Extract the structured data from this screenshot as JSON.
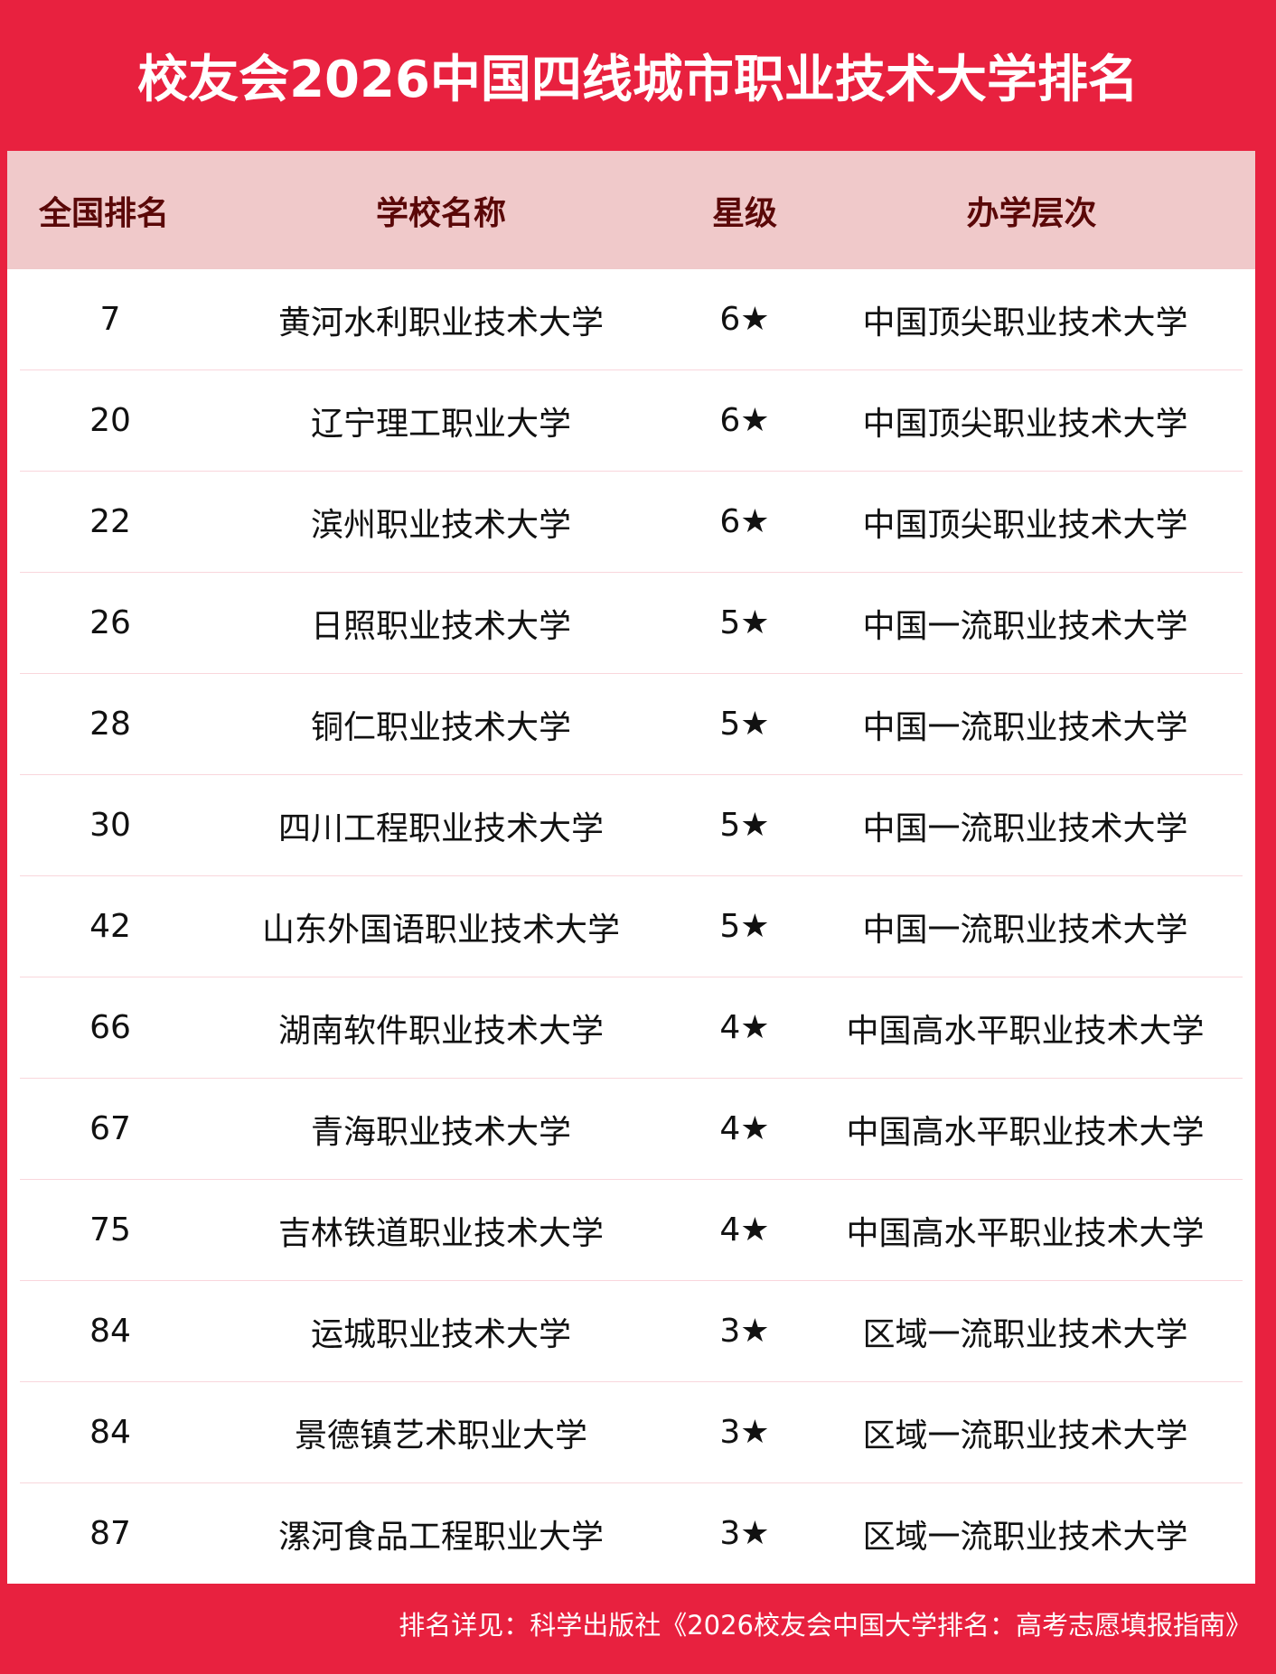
{
  "title": "校友会2026中国四线城市职业技术大学排名",
  "colors": {
    "brand_red": "#e8213f",
    "header_band": "#f0c9ca",
    "header_text": "#5a0808"
  },
  "table": {
    "headers": [
      "全国排名",
      "学校名称",
      "星级",
      "办学层次"
    ],
    "rows": [
      {
        "rank": "7",
        "name": "黄河水利职业技术大学",
        "stars": "6★",
        "level": "中国顶尖职业技术大学"
      },
      {
        "rank": "20",
        "name": "辽宁理工职业大学",
        "stars": "6★",
        "level": "中国顶尖职业技术大学"
      },
      {
        "rank": "22",
        "name": "滨州职业技术大学",
        "stars": "6★",
        "level": "中国顶尖职业技术大学"
      },
      {
        "rank": "26",
        "name": "日照职业技术大学",
        "stars": "5★",
        "level": "中国一流职业技术大学"
      },
      {
        "rank": "28",
        "name": "铜仁职业技术大学",
        "stars": "5★",
        "level": "中国一流职业技术大学"
      },
      {
        "rank": "30",
        "name": "四川工程职业技术大学",
        "stars": "5★",
        "level": "中国一流职业技术大学"
      },
      {
        "rank": "42",
        "name": "山东外国语职业技术大学",
        "stars": "5★",
        "level": "中国一流职业技术大学"
      },
      {
        "rank": "66",
        "name": "湖南软件职业技术大学",
        "stars": "4★",
        "level": "中国高水平职业技术大学"
      },
      {
        "rank": "67",
        "name": "青海职业技术大学",
        "stars": "4★",
        "level": "中国高水平职业技术大学"
      },
      {
        "rank": "75",
        "name": "吉林铁道职业技术大学",
        "stars": "4★",
        "level": "中国高水平职业技术大学"
      },
      {
        "rank": "84",
        "name": "运城职业技术大学",
        "stars": "3★",
        "level": "区域一流职业技术大学"
      },
      {
        "rank": "84",
        "name": "景德镇艺术职业大学",
        "stars": "3★",
        "level": "区域一流职业技术大学"
      },
      {
        "rank": "87",
        "name": "漯河食品工程职业大学",
        "stars": "3★",
        "level": "区域一流职业技术大学"
      }
    ]
  },
  "footer": "排名详见：科学出版社《2026校友会中国大学排名：高考志愿填报指南》"
}
